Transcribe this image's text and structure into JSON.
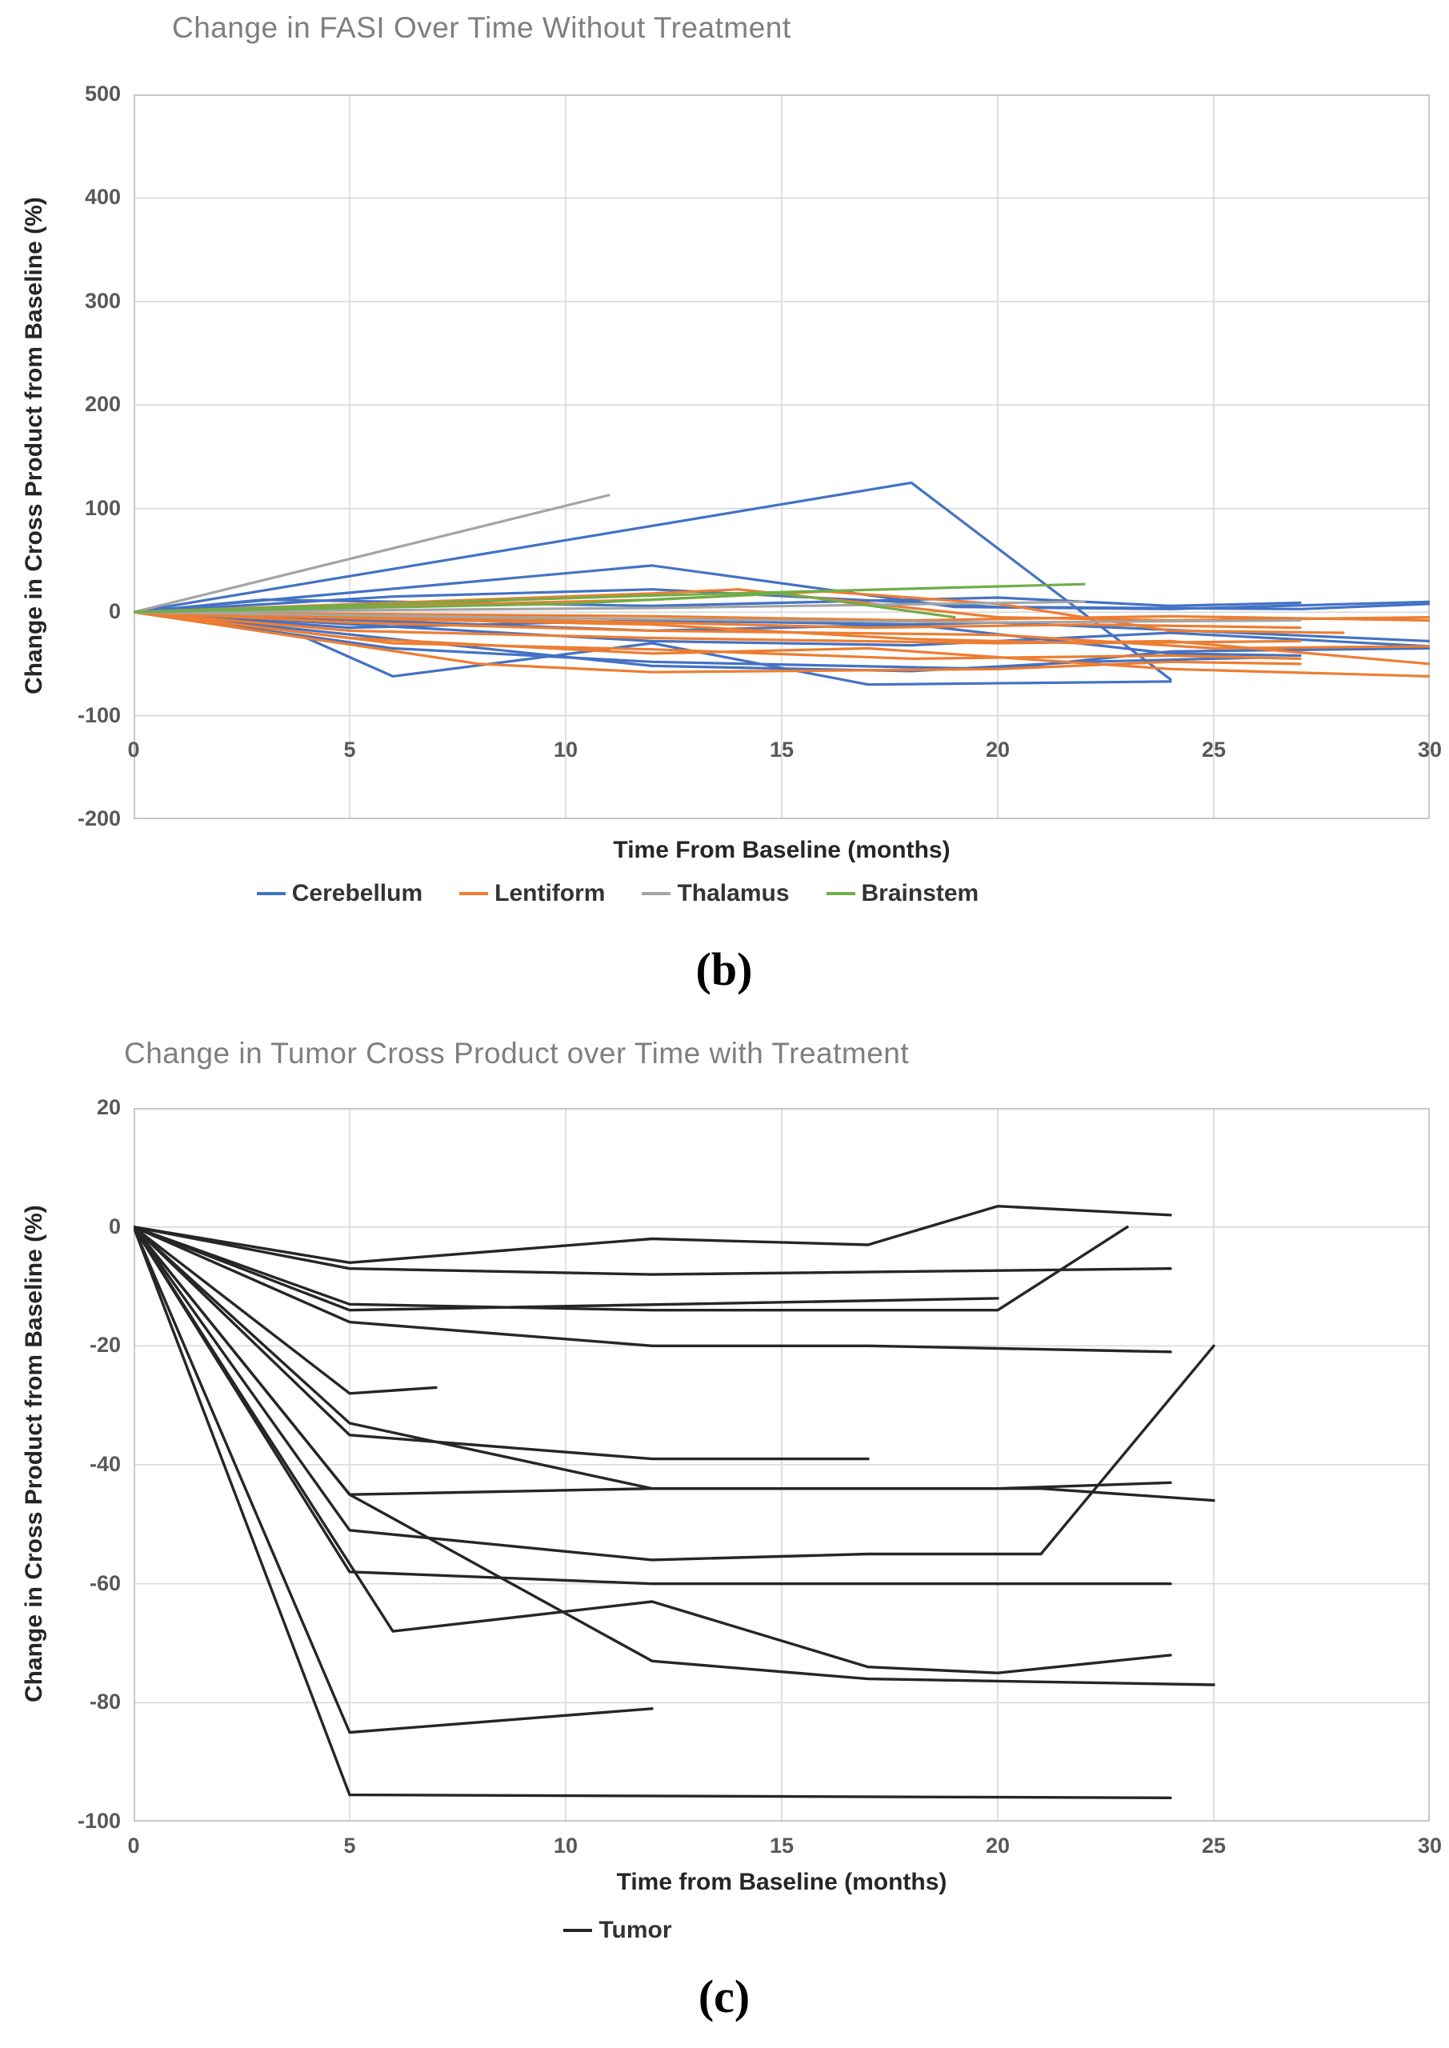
{
  "panels": {
    "b_label": "(b)",
    "c_label": "(c)"
  },
  "colors": {
    "cerebellum": "#4472C4",
    "lentiform": "#ED7D31",
    "thalamus": "#A5A5A5",
    "brainstem": "#70AD47",
    "tumor": "#262626",
    "gridline": "#D9D9D9",
    "plot_border": "#BFBFBF",
    "title_gray": "#7F7F7F",
    "tick_gray": "#595959"
  },
  "chart_data": [
    {
      "id": "fasi_without_treatment",
      "type": "line",
      "title": "Change in FASI Over Time Without Treatment",
      "xlabel": "Time From Baseline (months)",
      "ylabel": "Change in Cross Product from Baseline (%)",
      "xlim": [
        0,
        30
      ],
      "ylim": [
        -200,
        500
      ],
      "xticks": [
        0,
        5,
        10,
        15,
        20,
        25,
        30
      ],
      "yticks": [
        500,
        400,
        300,
        200,
        100,
        0,
        -100,
        -200
      ],
      "grid": true,
      "legend_position": "bottom",
      "groups": [
        {
          "name": "Cerebellum",
          "color": "#4472C4",
          "lines": [
            [
              [
                0,
                0
              ],
              [
                18,
                125
              ],
              [
                24,
                -65
              ]
            ],
            [
              [
                0,
                0
              ],
              [
                12,
                45
              ],
              [
                19,
                5
              ],
              [
                24,
                3
              ],
              [
                30,
                10
              ]
            ],
            [
              [
                0,
                0
              ],
              [
                4,
                -25
              ],
              [
                6,
                -62
              ],
              [
                12,
                -30
              ],
              [
                17,
                -70
              ],
              [
                24,
                -67
              ]
            ],
            [
              [
                0,
                0
              ],
              [
                6,
                15
              ],
              [
                12,
                22
              ],
              [
                20,
                5
              ],
              [
                27,
                3
              ],
              [
                30,
                8
              ]
            ],
            [
              [
                0,
                0
              ],
              [
                5,
                -15
              ],
              [
                12,
                -8
              ],
              [
                18,
                -12
              ],
              [
                24,
                -40
              ],
              [
                27,
                -42
              ]
            ],
            [
              [
                0,
                0
              ],
              [
                12,
                -18
              ],
              [
                20,
                -10
              ],
              [
                30,
                -28
              ]
            ],
            [
              [
                0,
                0
              ],
              [
                12,
                -28
              ],
              [
                18,
                -32
              ],
              [
                24,
                -20
              ],
              [
                30,
                -33
              ]
            ],
            [
              [
                0,
                0
              ],
              [
                6,
                -35
              ],
              [
                12,
                -48
              ],
              [
                20,
                -55
              ],
              [
                24,
                -38
              ],
              [
                30,
                -35
              ]
            ],
            [
              [
                0,
                0
              ],
              [
                3,
                12
              ],
              [
                12,
                6
              ],
              [
                20,
                14
              ],
              [
                24,
                6
              ],
              [
                27,
                9
              ]
            ],
            [
              [
                0,
                0
              ],
              [
                12,
                -52
              ],
              [
                18,
                -57
              ],
              [
                22,
                -48
              ],
              [
                26,
                -44
              ]
            ]
          ]
        },
        {
          "name": "Lentiform",
          "color": "#ED7D31",
          "lines": [
            [
              [
                0,
                0
              ],
              [
                5,
                -18
              ],
              [
                12,
                -25
              ],
              [
                20,
                -30
              ],
              [
                24,
                -28
              ],
              [
                30,
                -50
              ]
            ],
            [
              [
                0,
                0
              ],
              [
                12,
                -10
              ],
              [
                17,
                -15
              ],
              [
                22,
                -12
              ],
              [
                27,
                -15
              ]
            ],
            [
              [
                0,
                0
              ],
              [
                5,
                -25
              ],
              [
                12,
                -40
              ],
              [
                17,
                -35
              ],
              [
                24,
                -55
              ],
              [
                30,
                -62
              ]
            ],
            [
              [
                0,
                0
              ],
              [
                8,
                -50
              ],
              [
                12,
                -58
              ],
              [
                20,
                -55
              ],
              [
                24,
                -48
              ],
              [
                27,
                -50
              ]
            ],
            [
              [
                0,
                0
              ],
              [
                12,
                18
              ],
              [
                14,
                22
              ],
              [
                20,
                -5
              ],
              [
                24,
                -8
              ],
              [
                30,
                -5
              ]
            ],
            [
              [
                0,
                0
              ],
              [
                5,
                -10
              ],
              [
                12,
                -18
              ],
              [
                20,
                -22
              ],
              [
                25,
                -35
              ],
              [
                30,
                -33
              ]
            ],
            [
              [
                0,
                0
              ],
              [
                12,
                -4
              ],
              [
                18,
                -8
              ],
              [
                24,
                -4
              ],
              [
                30,
                -8
              ]
            ],
            [
              [
                0,
                0
              ],
              [
                6,
                -30
              ],
              [
                12,
                -36
              ],
              [
                18,
                -45
              ],
              [
                24,
                -42
              ],
              [
                27,
                -45
              ]
            ],
            [
              [
                0,
                0
              ],
              [
                12,
                12
              ],
              [
                16,
                20
              ],
              [
                20,
                8
              ],
              [
                24,
                -18
              ],
              [
                28,
                -20
              ]
            ],
            [
              [
                0,
                0
              ],
              [
                5,
                -6
              ],
              [
                12,
                -12
              ],
              [
                18,
                -26
              ],
              [
                22,
                -30
              ],
              [
                27,
                -28
              ]
            ]
          ]
        },
        {
          "name": "Thalamus",
          "color": "#A5A5A5",
          "lines": [
            [
              [
                0,
                0
              ],
              [
                11,
                113
              ]
            ],
            [
              [
                0,
                0
              ],
              [
                12,
                4
              ],
              [
                22,
                10
              ]
            ],
            [
              [
                0,
                0
              ],
              [
                10,
                -6
              ],
              [
                20,
                -10
              ],
              [
                27,
                -8
              ]
            ]
          ]
        },
        {
          "name": "Brainstem",
          "color": "#70AD47",
          "lines": [
            [
              [
                0,
                0
              ],
              [
                12,
                16
              ],
              [
                22,
                27
              ]
            ],
            [
              [
                0,
                0
              ],
              [
                10,
                8
              ],
              [
                15,
                18
              ],
              [
                19,
                -5
              ]
            ]
          ]
        }
      ]
    },
    {
      "id": "tumor_with_treatment",
      "type": "line",
      "title": "Change in Tumor Cross Product over Time with Treatment",
      "xlabel": "Time from Baseline (months)",
      "ylabel": "Change in Cross Product from Baseline (%)",
      "xlim": [
        0,
        30
      ],
      "ylim": [
        -100,
        20
      ],
      "xticks": [
        0,
        5,
        10,
        15,
        20,
        25,
        30
      ],
      "yticks": [
        20,
        0,
        -20,
        -40,
        -60,
        -80,
        -100
      ],
      "grid": true,
      "legend_position": "bottom",
      "groups": [
        {
          "name": "Tumor",
          "color": "#262626",
          "lines": [
            [
              [
                0,
                0
              ],
              [
                5,
                -6
              ],
              [
                12,
                -2
              ],
              [
                17,
                -3
              ],
              [
                20,
                3.5
              ],
              [
                24,
                2
              ]
            ],
            [
              [
                0,
                0
              ],
              [
                5,
                -7
              ],
              [
                12,
                -8
              ],
              [
                24,
                -7
              ]
            ],
            [
              [
                0,
                0
              ],
              [
                5,
                -13
              ],
              [
                12,
                -14
              ],
              [
                20,
                -14
              ],
              [
                23,
                0
              ]
            ],
            [
              [
                0,
                0
              ],
              [
                5,
                -14
              ],
              [
                20,
                -12
              ]
            ],
            [
              [
                0,
                0
              ],
              [
                5,
                -16
              ],
              [
                12,
                -20
              ],
              [
                17,
                -20
              ],
              [
                24,
                -21
              ]
            ],
            [
              [
                0,
                0
              ],
              [
                5,
                -28
              ],
              [
                7,
                -27
              ]
            ],
            [
              [
                0,
                0
              ],
              [
                5,
                -33
              ],
              [
                12,
                -44
              ],
              [
                20,
                -44
              ],
              [
                24,
                -43
              ]
            ],
            [
              [
                0,
                0
              ],
              [
                5,
                -35
              ],
              [
                12,
                -39
              ],
              [
                17,
                -39
              ]
            ],
            [
              [
                0,
                0
              ],
              [
                5,
                -45
              ],
              [
                12,
                -44
              ],
              [
                21,
                -44
              ],
              [
                25,
                -46
              ]
            ],
            [
              [
                0,
                0
              ],
              [
                5,
                -45
              ],
              [
                12,
                -73
              ],
              [
                17,
                -76
              ],
              [
                25,
                -77
              ]
            ],
            [
              [
                0,
                0
              ],
              [
                5,
                -51
              ],
              [
                12,
                -56
              ],
              [
                17,
                -55
              ],
              [
                21,
                -55
              ],
              [
                25,
                -20
              ]
            ],
            [
              [
                0,
                0
              ],
              [
                5,
                -58
              ],
              [
                12,
                -60
              ],
              [
                24,
                -60
              ]
            ],
            [
              [
                0,
                0
              ],
              [
                6,
                -68
              ],
              [
                12,
                -63
              ],
              [
                17,
                -74
              ],
              [
                20,
                -75
              ],
              [
                24,
                -72
              ]
            ],
            [
              [
                0,
                0
              ],
              [
                5,
                -85
              ],
              [
                12,
                -81
              ]
            ],
            [
              [
                0,
                0
              ],
              [
                5,
                -95.5
              ],
              [
                24,
                -96
              ]
            ]
          ]
        }
      ]
    }
  ]
}
